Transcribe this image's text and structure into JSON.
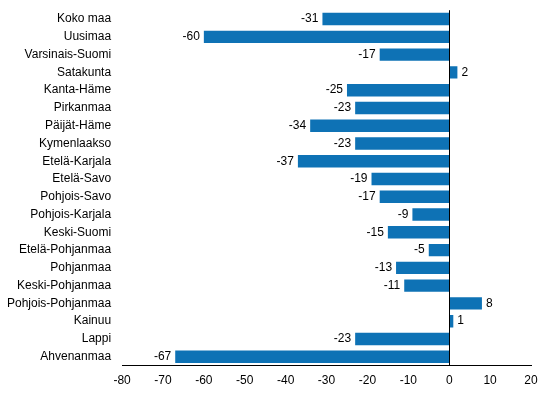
{
  "chart_data": {
    "type": "bar",
    "orientation": "horizontal",
    "categories": [
      "Koko maa",
      "Uusimaa",
      "Varsinais-Suomi",
      "Satakunta",
      "Kanta-Häme",
      "Pirkanmaa",
      "Päijät-Häme",
      "Kymenlaakso",
      "Etelä-Karjala",
      "Etelä-Savo",
      "Pohjois-Savo",
      "Pohjois-Karjala",
      "Keski-Suomi",
      "Etelä-Pohjanmaa",
      "Pohjanmaa",
      "Keski-Pohjanmaa",
      "Pohjois-Pohjanmaa",
      "Kainuu",
      "Lappi",
      "Ahvenanmaa"
    ],
    "values": [
      -31,
      -60,
      -17,
      2,
      -25,
      -23,
      -34,
      -23,
      -37,
      -19,
      -17,
      -9,
      -15,
      -5,
      -13,
      -11,
      8,
      1,
      -23,
      -67
    ],
    "color": "#0e72b5",
    "xlim": [
      -80,
      20
    ],
    "xticks": [
      -80,
      -70,
      -60,
      -50,
      -40,
      -30,
      -20,
      -10,
      0,
      10,
      20
    ],
    "grid": false,
    "data_labels": true
  }
}
